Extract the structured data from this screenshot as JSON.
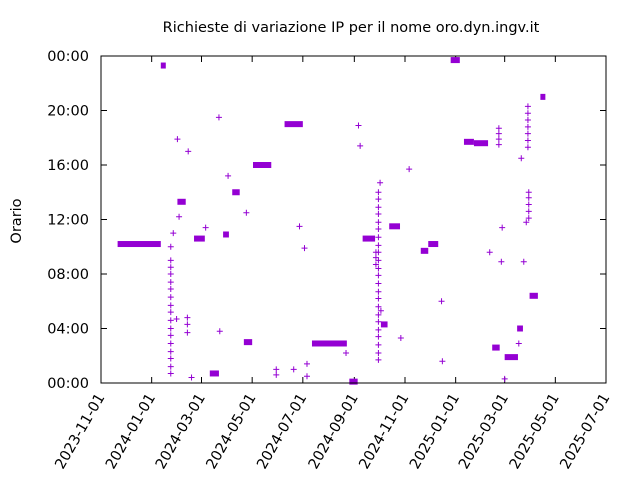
{
  "chart_data": {
    "type": "scatter",
    "title": "Richieste di variazione IP per il nome oro.dyn.ingv.it",
    "xlabel": "",
    "ylabel": "Orario",
    "series_color": "#9400d3",
    "x_tick_labels": [
      "2023-11-01",
      "2024-01-01",
      "2024-03-01",
      "2024-05-01",
      "2024-07-01",
      "2024-09-01",
      "2024-11-01",
      "2025-01-01",
      "2025-03-01",
      "2025-05-01",
      "2025-07-01"
    ],
    "y_tick_labels": [
      "00:00",
      "04:00",
      "08:00",
      "12:00",
      "16:00",
      "20:00",
      "00:00"
    ],
    "xlim": [
      "2023-11-01",
      "2025-07-01"
    ],
    "ylim": [
      0,
      24
    ],
    "grid": false,
    "legend": "none",
    "series": [
      {
        "segments": [
          {
            "x0": "2023-11-21",
            "x1": "2024-01-12",
            "hour": 10.2
          },
          {
            "x0": "2024-01-12",
            "x1": "2024-01-18",
            "hour": 23.3
          },
          {
            "x0": "2024-02-01",
            "x1": "2024-02-11",
            "hour": 13.3
          },
          {
            "x0": "2024-02-21",
            "x1": "2024-03-05",
            "hour": 10.6
          },
          {
            "x0": "2024-03-11",
            "x1": "2024-03-22",
            "hour": 0.7
          },
          {
            "x0": "2024-03-27",
            "x1": "2024-04-03",
            "hour": 10.9
          },
          {
            "x0": "2024-04-07",
            "x1": "2024-04-16",
            "hour": 14.0
          },
          {
            "x0": "2024-04-21",
            "x1": "2024-05-01",
            "hour": 3.0
          },
          {
            "x0": "2024-05-02",
            "x1": "2024-05-24",
            "hour": 16.0
          },
          {
            "x0": "2024-06-09",
            "x1": "2024-07-01",
            "hour": 19.0
          },
          {
            "x0": "2024-07-12",
            "x1": "2024-08-23",
            "hour": 2.9
          },
          {
            "x0": "2024-08-26",
            "x1": "2024-09-05",
            "hour": 0.1
          },
          {
            "x0": "2024-09-11",
            "x1": "2024-09-26",
            "hour": 10.6
          },
          {
            "x0": "2024-10-03",
            "x1": "2024-10-11",
            "hour": 4.3
          },
          {
            "x0": "2024-10-13",
            "x1": "2024-10-26",
            "hour": 11.5
          },
          {
            "x0": "2024-11-20",
            "x1": "2024-11-29",
            "hour": 9.7
          },
          {
            "x0": "2024-11-29",
            "x1": "2024-12-11",
            "hour": 10.2
          },
          {
            "x0": "2024-12-26",
            "x1": "2025-01-06",
            "hour": 23.7
          },
          {
            "x0": "2025-01-11",
            "x1": "2025-01-23",
            "hour": 17.7
          },
          {
            "x0": "2025-01-23",
            "x1": "2025-02-09",
            "hour": 17.6
          },
          {
            "x0": "2025-02-14",
            "x1": "2025-02-23",
            "hour": 2.6
          },
          {
            "x0": "2025-03-01",
            "x1": "2025-03-17",
            "hour": 1.9
          },
          {
            "x0": "2025-03-16",
            "x1": "2025-03-23",
            "hour": 4.0
          },
          {
            "x0": "2025-03-31",
            "x1": "2025-04-10",
            "hour": 6.4
          },
          {
            "x0": "2025-04-13",
            "x1": "2025-04-19",
            "hour": 21.0
          }
        ],
        "points": [
          {
            "x": "2024-01-24",
            "hours": [
              0.7,
              1.2,
              1.8,
              2.3,
              2.9,
              3.5,
              4.0,
              4.6,
              5.2,
              5.7,
              6.3,
              6.9,
              7.4,
              8.0,
              8.5,
              9.0,
              10.0
            ]
          },
          {
            "x": "2024-01-27",
            "hours": [
              11.0
            ]
          },
          {
            "x": "2024-01-31",
            "hours": [
              4.7
            ]
          },
          {
            "x": "2024-02-01",
            "hours": [
              17.9
            ]
          },
          {
            "x": "2024-02-03",
            "hours": [
              12.2
            ]
          },
          {
            "x": "2024-02-13",
            "hours": [
              3.7,
              4.3,
              4.8
            ]
          },
          {
            "x": "2024-02-14",
            "hours": [
              17.0
            ]
          },
          {
            "x": "2024-02-18",
            "hours": [
              0.4
            ]
          },
          {
            "x": "2024-03-06",
            "hours": [
              11.4
            ]
          },
          {
            "x": "2024-03-22",
            "hours": [
              19.5
            ]
          },
          {
            "x": "2024-03-23",
            "hours": [
              3.8
            ]
          },
          {
            "x": "2024-04-02",
            "hours": [
              15.2
            ]
          },
          {
            "x": "2024-04-24",
            "hours": [
              12.5
            ]
          },
          {
            "x": "2024-05-30",
            "hours": [
              0.6,
              1.0
            ]
          },
          {
            "x": "2024-06-20",
            "hours": [
              1.0
            ]
          },
          {
            "x": "2024-06-27",
            "hours": [
              11.5
            ]
          },
          {
            "x": "2024-07-03",
            "hours": [
              9.9
            ]
          },
          {
            "x": "2024-07-06",
            "hours": [
              0.5,
              1.4
            ]
          },
          {
            "x": "2024-08-22",
            "hours": [
              2.2
            ]
          },
          {
            "x": "2024-09-06",
            "hours": [
              18.9
            ]
          },
          {
            "x": "2024-09-08",
            "hours": [
              17.4
            ]
          },
          {
            "x": "2024-09-27",
            "hours": [
              8.7,
              9.2,
              9.6
            ]
          },
          {
            "x": "2024-09-30",
            "hours": [
              1.7,
              2.2,
              2.8,
              3.4,
              3.9,
              4.5,
              5.0,
              5.6,
              6.2,
              6.7,
              7.3,
              7.9,
              8.4,
              9.0,
              9.6,
              10.1,
              10.7,
              11.3,
              11.8,
              12.4,
              12.9,
              13.5,
              14.0
            ]
          },
          {
            "x": "2024-10-02",
            "hours": [
              14.7
            ]
          },
          {
            "x": "2024-10-03",
            "hours": [
              5.3
            ]
          },
          {
            "x": "2024-10-27",
            "hours": [
              3.3
            ]
          },
          {
            "x": "2024-11-06",
            "hours": [
              15.7
            ]
          },
          {
            "x": "2024-12-15",
            "hours": [
              6.0
            ]
          },
          {
            "x": "2024-12-16",
            "hours": [
              1.6
            ]
          },
          {
            "x": "2025-02-11",
            "hours": [
              9.6
            ]
          },
          {
            "x": "2025-02-22",
            "hours": [
              17.5,
              17.9,
              18.3,
              18.7
            ]
          },
          {
            "x": "2025-02-25",
            "hours": [
              8.9
            ]
          },
          {
            "x": "2025-02-26",
            "hours": [
              11.4
            ]
          },
          {
            "x": "2025-03-01",
            "hours": [
              0.3
            ]
          },
          {
            "x": "2025-03-18",
            "hours": [
              2.9
            ]
          },
          {
            "x": "2025-03-21",
            "hours": [
              16.5
            ]
          },
          {
            "x": "2025-03-24",
            "hours": [
              8.9
            ]
          },
          {
            "x": "2025-03-27",
            "hours": [
              11.8
            ]
          },
          {
            "x": "2025-03-30",
            "hours": [
              12.1,
              12.6,
              13.1,
              13.6,
              14.0
            ]
          },
          {
            "x": "2025-03-29",
            "hours": [
              17.3,
              17.8,
              18.3,
              18.8,
              19.3,
              19.8,
              20.3
            ]
          }
        ]
      }
    ]
  }
}
